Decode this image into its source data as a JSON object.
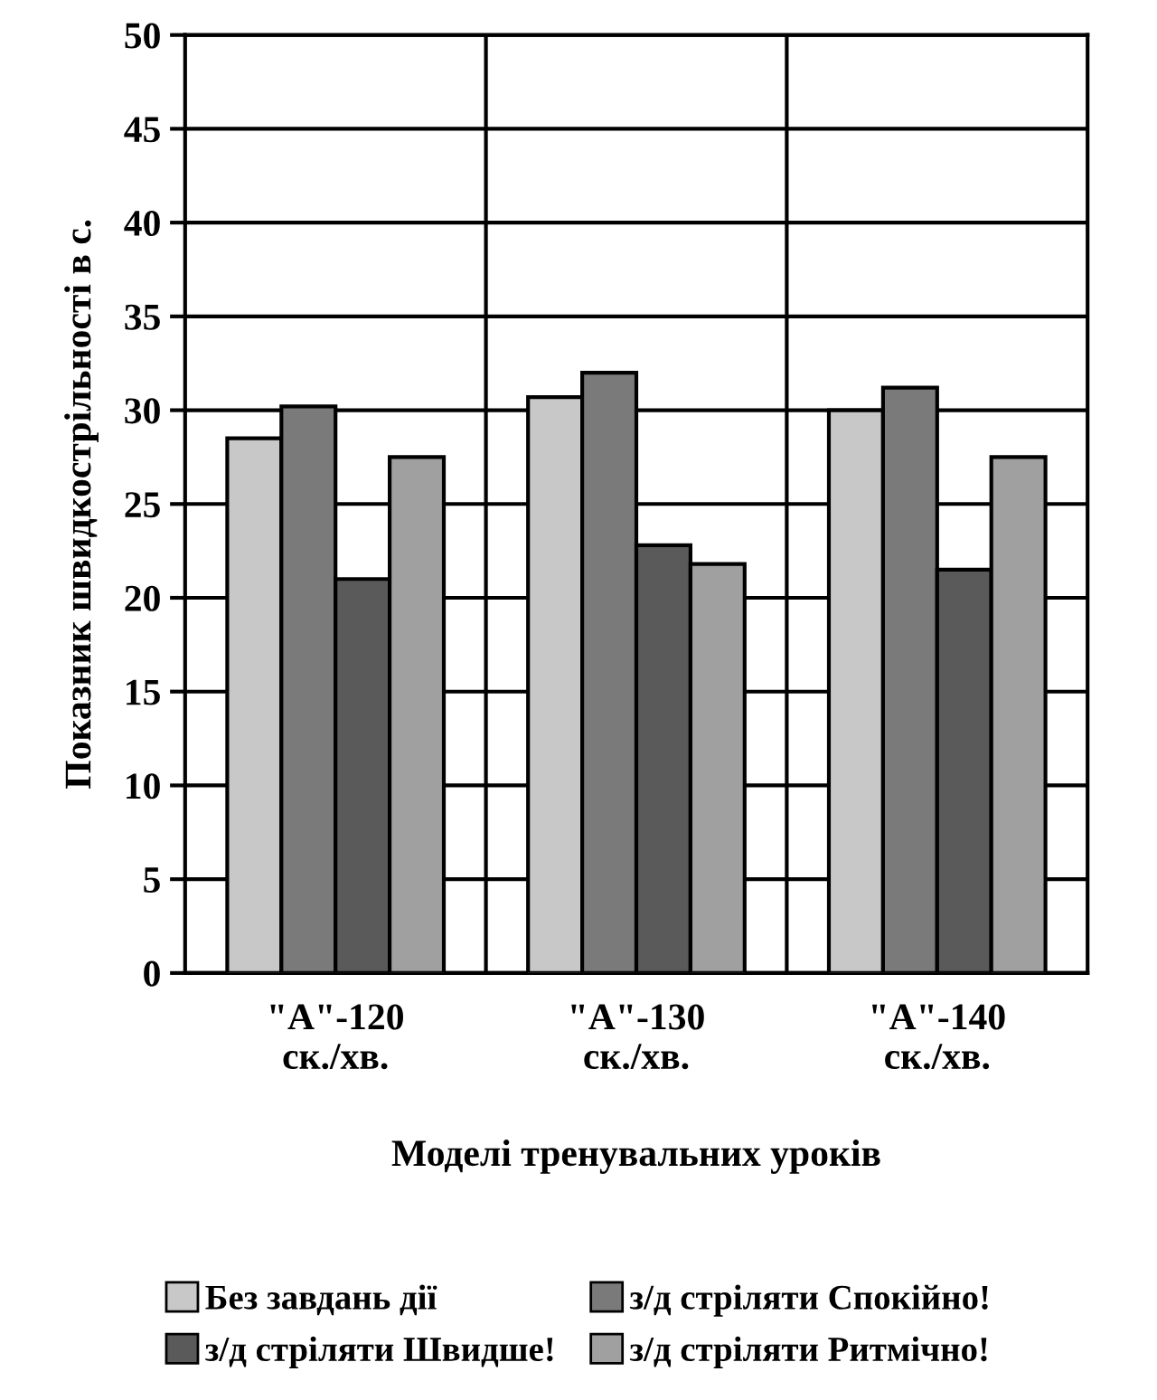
{
  "chart_data": {
    "type": "bar",
    "xlabel": "Моделі тренувальних уроків",
    "ylabel": "Показник швидкострільності в с.",
    "categories": [
      "\"А\"-120\nск./хв.",
      "\"А\"-130\nск./хв.",
      "\"А\"-140\nск./хв."
    ],
    "series": [
      {
        "name": "Без завдань дії",
        "color": "#c8c8c8",
        "values": [
          28.5,
          30.7,
          30.0
        ]
      },
      {
        "name": "з/д стріляти Спокійно!",
        "color": "#7a7a7a",
        "values": [
          30.2,
          32.0,
          31.2
        ]
      },
      {
        "name": "з/д стріляти Швидше!",
        "color": "#5a5a5a",
        "values": [
          21.0,
          22.8,
          21.5
        ]
      },
      {
        "name": "з/д стріляти Ритмічно!",
        "color": "#a0a0a0",
        "values": [
          27.5,
          21.8,
          27.5
        ]
      }
    ],
    "ylim": [
      0,
      50
    ],
    "yticks": [
      0,
      5,
      10,
      15,
      20,
      25,
      30,
      35,
      40,
      45,
      50
    ],
    "grid": true,
    "legend": "bottom"
  }
}
